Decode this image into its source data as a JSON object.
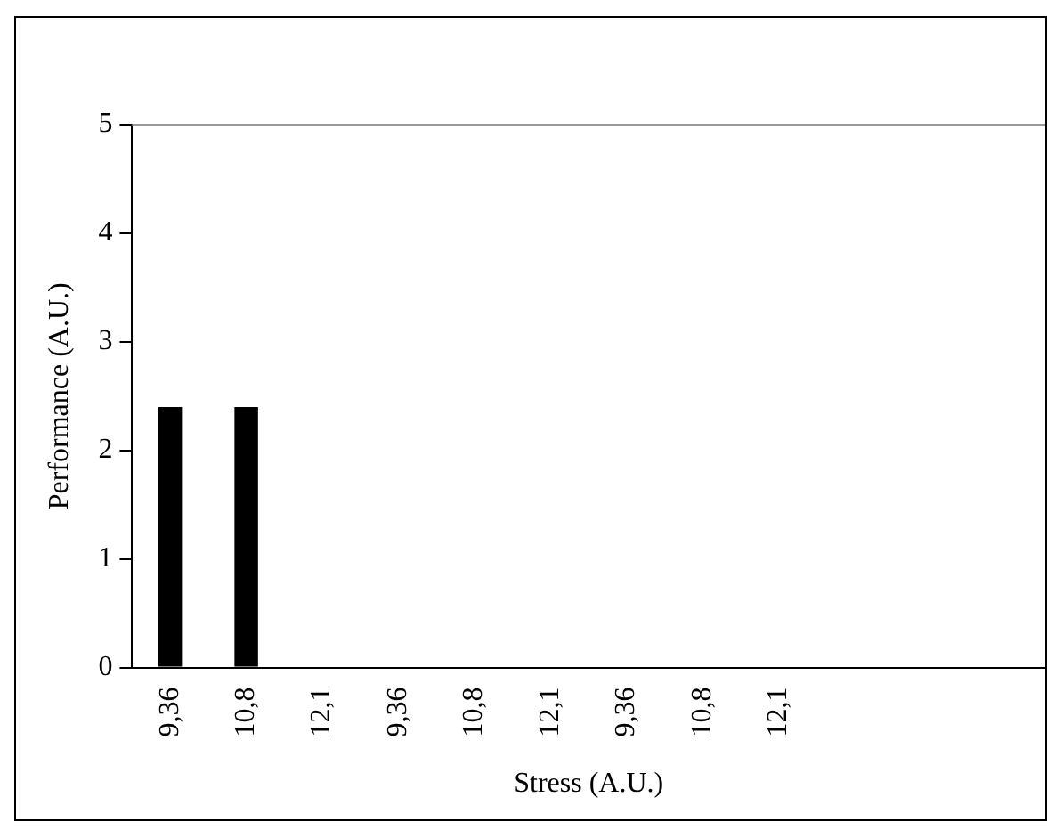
{
  "chart_data": {
    "type": "bar",
    "xlabel": "Stress (A.U.)",
    "ylabel": "Performance (A.U.)",
    "categories": [
      "9,36",
      "10,8",
      "12,1",
      "9,36",
      "10,8",
      "12,1",
      "9,36",
      "10,8",
      "12,1",
      null,
      null,
      null
    ],
    "values": [
      2.4,
      2.4,
      0,
      0,
      0,
      0,
      0,
      0,
      0,
      null,
      null,
      null
    ],
    "color": "#000000",
    "ylim": [
      0,
      5
    ],
    "yticks": [
      0,
      1,
      2,
      3,
      4,
      5
    ],
    "grid": false,
    "legend": false
  }
}
